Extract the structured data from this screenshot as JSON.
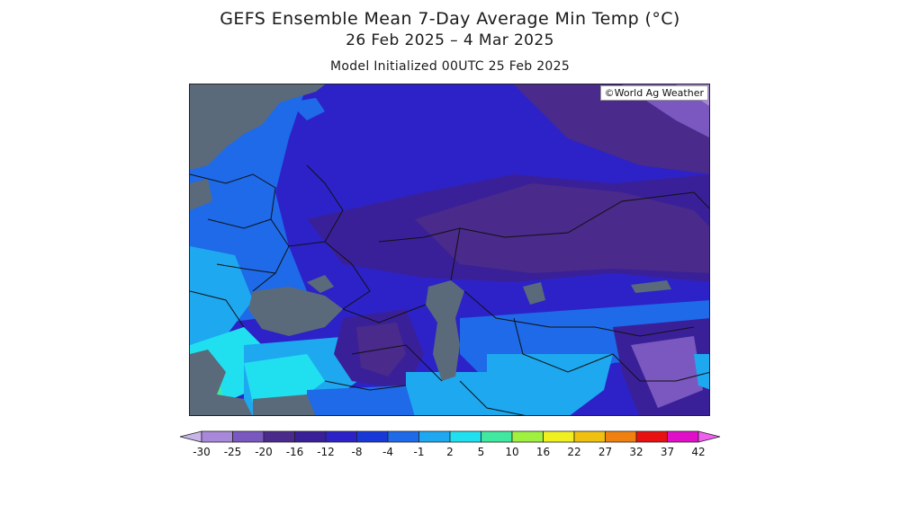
{
  "header": {
    "title": "GEFS Ensemble Mean 7-Day Average Min Temp (°C)",
    "dates": "26 Feb 2025 – 4 Mar 2025",
    "init": "Model Initialized 00UTC 25 Feb 2025"
  },
  "map": {
    "credit": "©World Ag Weather",
    "water_color": "#5a6a7a"
  },
  "legend": {
    "ticks": [
      "-30",
      "-25",
      "-20",
      "-16",
      "-12",
      "-8",
      "-4",
      "-1",
      "2",
      "5",
      "10",
      "16",
      "22",
      "27",
      "32",
      "37",
      "42"
    ],
    "colors": [
      "#c8b4e8",
      "#a888d8",
      "#7a58c0",
      "#4a2a8a",
      "#3a2098",
      "#2c22c8",
      "#1838d8",
      "#1e6ae8",
      "#1ea8f0",
      "#20e0f0",
      "#40e8a0",
      "#a0f040",
      "#f0f020",
      "#f0c010",
      "#f08010",
      "#e81010",
      "#e010c8",
      "#f060f0"
    ]
  }
}
